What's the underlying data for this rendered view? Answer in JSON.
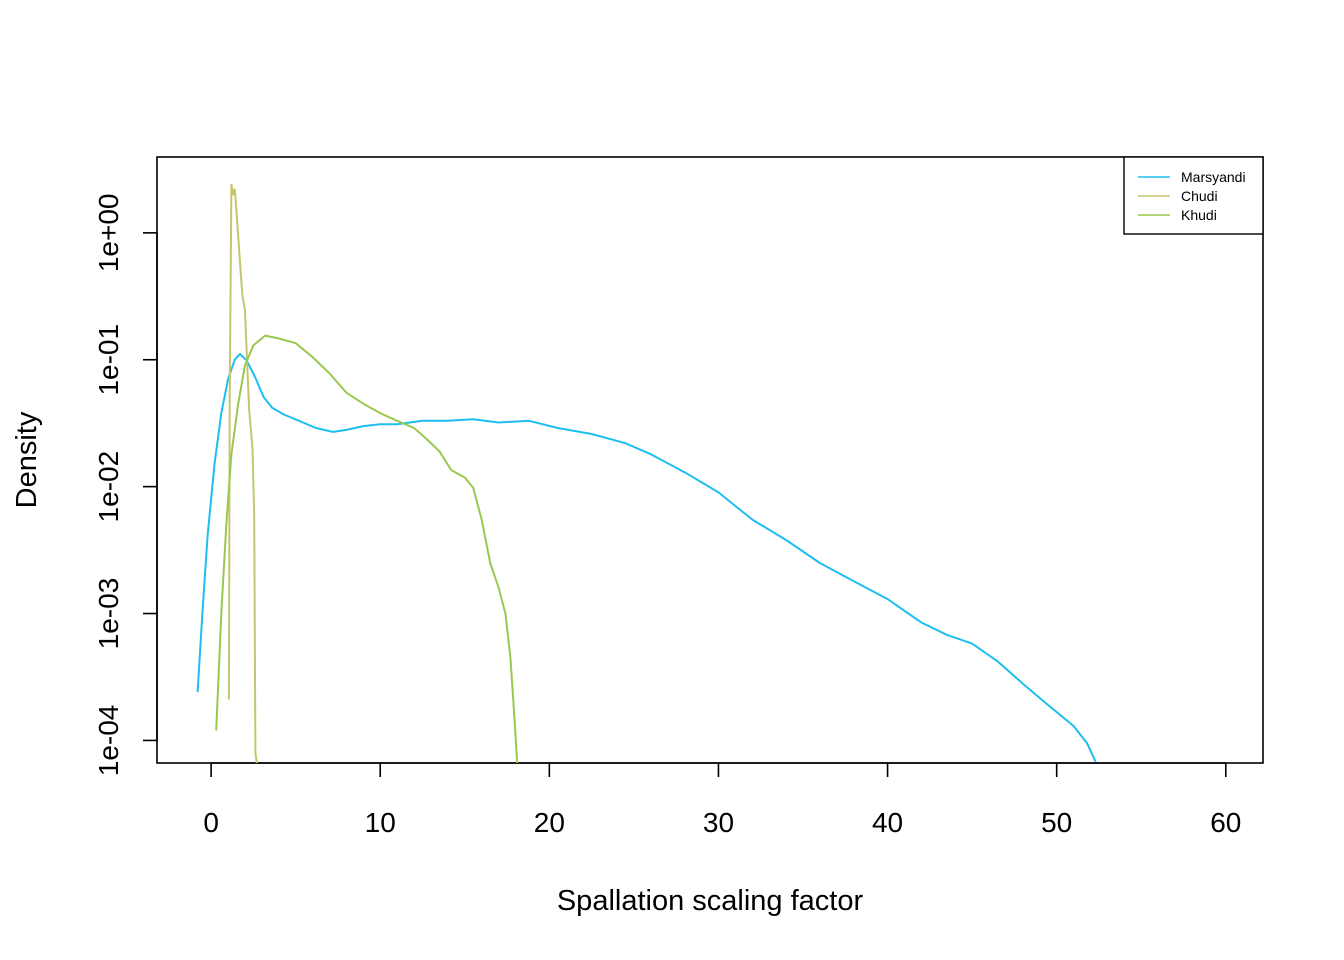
{
  "chart_data": {
    "type": "line",
    "title": "",
    "xlabel": "Spallation scaling factor",
    "ylabel": "Density",
    "xlim": [
      -3.2,
      62.2
    ],
    "ylim": [
      6.64e-05,
      3.96
    ],
    "y_scale": "log",
    "x_ticks": [
      0,
      10,
      20,
      30,
      40,
      50,
      60
    ],
    "x_tick_labels": [
      "0",
      "10",
      "20",
      "30",
      "40",
      "50",
      "60"
    ],
    "y_ticks": [
      0.0001,
      0.001,
      0.01,
      0.1,
      1
    ],
    "y_tick_labels": [
      "1e-04",
      "1e-03",
      "1e-02",
      "1e-01",
      "1e+00"
    ],
    "legend": {
      "position": "top-right"
    },
    "series": [
      {
        "name": "Marsyandi",
        "color": "#1ebfef",
        "points": [
          [
            -0.8,
            0.00024
          ],
          [
            -0.5,
            0.0011
          ],
          [
            -0.2,
            0.0042
          ],
          [
            0.2,
            0.015
          ],
          [
            0.6,
            0.038
          ],
          [
            1.0,
            0.07
          ],
          [
            1.4,
            0.1
          ],
          [
            1.7,
            0.111
          ],
          [
            2.1,
            0.099
          ],
          [
            2.6,
            0.073
          ],
          [
            3.1,
            0.051
          ],
          [
            3.6,
            0.042
          ],
          [
            4.3,
            0.037
          ],
          [
            5.2,
            0.033
          ],
          [
            6.2,
            0.029
          ],
          [
            7.2,
            0.027
          ],
          [
            8.0,
            0.028
          ],
          [
            9.0,
            0.03
          ],
          [
            10.0,
            0.031
          ],
          [
            11.0,
            0.031
          ],
          [
            12.5,
            0.033
          ],
          [
            14.0,
            0.033
          ],
          [
            15.5,
            0.034
          ],
          [
            17.0,
            0.032
          ],
          [
            18.8,
            0.033
          ],
          [
            20.5,
            0.029
          ],
          [
            22.5,
            0.026
          ],
          [
            24.5,
            0.022
          ],
          [
            26.0,
            0.018
          ],
          [
            28.0,
            0.013
          ],
          [
            30.0,
            0.009
          ],
          [
            32.0,
            0.0055
          ],
          [
            34.0,
            0.0038
          ],
          [
            36.0,
            0.0025
          ],
          [
            38.0,
            0.0018
          ],
          [
            40.0,
            0.0013
          ],
          [
            42.0,
            0.00085
          ],
          [
            43.5,
            0.00068
          ],
          [
            45.0,
            0.00058
          ],
          [
            46.5,
            0.00042
          ],
          [
            48.0,
            0.00028
          ],
          [
            49.5,
            0.00019
          ],
          [
            51.0,
            0.00013
          ],
          [
            51.8,
            9.5e-05
          ],
          [
            52.3,
            6.8e-05
          ]
        ]
      },
      {
        "name": "Chudi",
        "color": "#c5c56e",
        "points": [
          [
            1.05,
            0.00021
          ],
          [
            1.1,
            0.05
          ],
          [
            1.2,
            2.4
          ],
          [
            1.3,
            2.0
          ],
          [
            1.4,
            2.2
          ],
          [
            1.55,
            1.2
          ],
          [
            1.7,
            0.6
          ],
          [
            1.85,
            0.32
          ],
          [
            2.0,
            0.25
          ],
          [
            2.1,
            0.12
          ],
          [
            2.25,
            0.04
          ],
          [
            2.45,
            0.02
          ],
          [
            2.55,
            0.006
          ],
          [
            2.62,
            8e-05
          ],
          [
            2.7,
            6.64e-05
          ]
        ]
      },
      {
        "name": "Khudi",
        "color": "#9ac84f",
        "points": [
          [
            0.3,
            0.00012
          ],
          [
            0.6,
            0.001
          ],
          [
            0.9,
            0.005
          ],
          [
            1.2,
            0.018
          ],
          [
            1.6,
            0.045
          ],
          [
            2.0,
            0.09
          ],
          [
            2.5,
            0.13
          ],
          [
            3.2,
            0.155
          ],
          [
            4.0,
            0.147
          ],
          [
            5.0,
            0.135
          ],
          [
            6.0,
            0.105
          ],
          [
            7.0,
            0.078
          ],
          [
            8.0,
            0.055
          ],
          [
            9.0,
            0.045
          ],
          [
            10.0,
            0.038
          ],
          [
            11.0,
            0.033
          ],
          [
            12.0,
            0.029
          ],
          [
            12.7,
            0.024
          ],
          [
            13.5,
            0.019
          ],
          [
            14.2,
            0.0135
          ],
          [
            15.0,
            0.0118
          ],
          [
            15.5,
            0.0098
          ],
          [
            16.0,
            0.0055
          ],
          [
            16.5,
            0.0025
          ],
          [
            17.0,
            0.0016
          ],
          [
            17.4,
            0.001
          ],
          [
            17.7,
            0.00045
          ],
          [
            17.9,
            0.00018
          ],
          [
            18.1,
            6.64e-05
          ]
        ]
      }
    ]
  }
}
